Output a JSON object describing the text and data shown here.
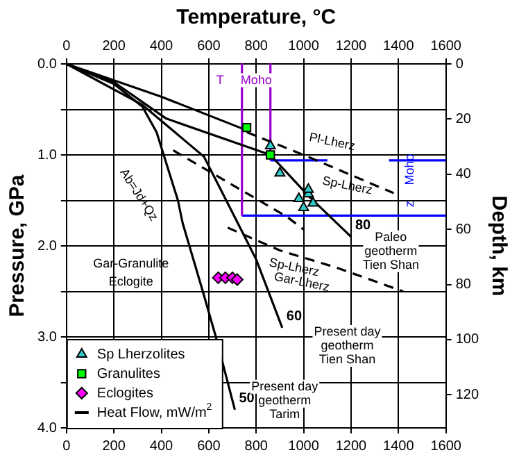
{
  "chart_data": {
    "type": "line",
    "x2label": "Temperature, °C",
    "ylabel": "Pressure, GPa",
    "y2label": "Depth, km",
    "xlim": [
      0,
      1600
    ],
    "xticks": [
      0,
      200,
      400,
      600,
      800,
      1000,
      1200,
      1400,
      1600
    ],
    "x2lim": [
      0,
      1600
    ],
    "x2ticks": [
      0,
      200,
      400,
      600,
      800,
      1000,
      1200,
      1400,
      1600
    ],
    "ylim": [
      4.0,
      0.0
    ],
    "yticks": [
      {
        "value": 0,
        "label": "0.0"
      },
      {
        "value": 0.5,
        "label": null
      },
      {
        "value": 1,
        "label": "1.0"
      },
      {
        "value": 1.5,
        "label": null
      },
      {
        "value": 2,
        "label": "2.0"
      },
      {
        "value": 2.5,
        "label": null
      },
      {
        "value": 3,
        "label": "3.0"
      },
      {
        "value": 3.5,
        "label": null
      },
      {
        "value": 4,
        "label": "4.0"
      }
    ],
    "y2lim": [
      132,
      0
    ],
    "y2ticks": [
      0,
      20,
      40,
      60,
      80,
      100,
      120
    ],
    "grid": true,
    "legend": "bottom left",
    "series": [
      {
        "name": "Sp Lherzolites",
        "type": "scatter",
        "marker": "triangle",
        "color": "#33cccc",
        "x": [
          860,
          900,
          980,
          1020,
          1040,
          1000,
          1020
        ],
        "values": [
          0.9,
          1.2,
          1.48,
          1.43,
          1.53,
          1.58,
          1.38
        ]
      },
      {
        "name": "Granulites",
        "type": "scatter",
        "marker": "square",
        "color": "#00ff00",
        "x": [
          760,
          860
        ],
        "values": [
          0.7,
          1.0
        ]
      },
      {
        "name": "Eclogites",
        "type": "scatter",
        "marker": "diamond",
        "color": "#ff00ff",
        "x": [
          640,
          670,
          700,
          720
        ],
        "values": [
          2.35,
          2.35,
          2.35,
          2.37
        ]
      },
      {
        "name": "Heat Flow, mW/m$^{2}$",
        "type": "line",
        "color": "#000000",
        "x": [
          0,
          200,
          420,
          860,
          1020,
          1200
        ],
        "values": [
          0,
          0.2,
          0.6,
          1.0,
          1.45,
          1.9
        ]
      },
      {
        "color": "#000000",
        "x": [
          0,
          400,
          760
        ],
        "values": [
          0,
          0.36,
          0.73
        ]
      },
      {
        "color": "#000000",
        "x": [
          0,
          320,
          580,
          740,
          800,
          910
        ],
        "values": [
          0,
          0.45,
          1.02,
          1.84,
          2.15,
          2.9
        ]
      },
      {
        "color": "#000000",
        "x": [
          0,
          200,
          320,
          380,
          410,
          470,
          490,
          575,
          630,
          710
        ],
        "values": [
          0,
          0.22,
          0.47,
          0.75,
          1.0,
          1.5,
          1.75,
          2.5,
          3.0,
          3.8
        ]
      },
      {
        "color": "#000000",
        "line_style": "dashed",
        "x": [
          760,
          1000,
          1380
        ],
        "values": [
          0.75,
          1.0,
          1.42
        ]
      },
      {
        "color": "#000000",
        "line_style": "dashed",
        "x": [
          450,
          930,
          1000
        ],
        "values": [
          0.95,
          1.68,
          1.82
        ]
      },
      {
        "color": "#000000",
        "line_style": "dashed",
        "x": [
          680,
          900,
          1140,
          1420
        ],
        "values": [
          1.8,
          2.05,
          2.24,
          2.5
        ]
      },
      {
        "color": "#9900cc",
        "x": [
          740,
          740
        ],
        "values": [
          0,
          1.66
        ]
      },
      {
        "color": "#9900cc",
        "x": [
          860,
          860
        ],
        "values": [
          0,
          1.05
        ]
      },
      {
        "color": "#0000ff",
        "axis": "y2",
        "x": [
          860,
          1100,
          1200,
          1360,
          1600
        ],
        "values": [
          35,
          35,
          null,
          35,
          35
        ]
      },
      {
        "color": "#0000ff",
        "axis": "y2",
        "x": [
          740,
          1600
        ],
        "values": [
          55,
          55
        ]
      }
    ],
    "annotations": [
      "T",
      "Moho",
      "Gar-Granulite",
      "Eclogite",
      "Ab=Jd+Qz",
      "Pl-Lherz",
      "Sp-Lherz",
      "Sp-Lherz",
      "Gar-Lherz",
      {
        "text": "80",
        "x": 1200,
        "y": 1.9
      },
      {
        "text": "60",
        "x": 910,
        "y": 2.9
      },
      {
        "text": "50",
        "x": 710,
        "y": 3.8
      },
      "Paleo\ngeotherm\nTien Shan",
      "Present day\ngeotherm\nTien Shan",
      "Present day\ngeotherm\nTarim",
      "Moho",
      "z"
    ]
  }
}
